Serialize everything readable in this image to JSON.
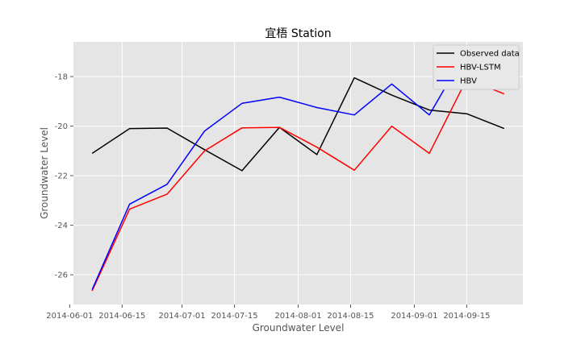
{
  "chart_data": {
    "type": "line",
    "title": "宜梧 Station",
    "xlabel": "Groundwater Level",
    "ylabel": "Groundwater Level",
    "x": [
      "2014-06-07",
      "2014-06-17",
      "2014-06-27",
      "2014-07-07",
      "2014-07-17",
      "2014-07-27",
      "2014-08-06",
      "2014-08-16",
      "2014-08-26",
      "2014-09-05",
      "2014-09-15",
      "2014-09-25"
    ],
    "series": [
      {
        "name": "Observed data",
        "color": "#000000",
        "values": [
          -21.1,
          -20.1,
          -20.08,
          -20.95,
          -21.8,
          -20.05,
          -21.15,
          -18.05,
          -18.75,
          -19.35,
          -19.5,
          -20.1
        ]
      },
      {
        "name": "HBV-LSTM",
        "color": "#ff0000",
        "values": [
          -26.65,
          -23.35,
          -22.75,
          -21.0,
          -20.07,
          -20.05,
          -20.85,
          -21.78,
          -20.0,
          -21.1,
          -18.1,
          -18.7
        ]
      },
      {
        "name": "HBV",
        "color": "#0000ff",
        "values": [
          -26.6,
          -23.15,
          -22.35,
          -20.2,
          -19.08,
          -18.83,
          -19.25,
          -19.55,
          -18.3,
          -19.55,
          -16.95,
          -17.9
        ]
      }
    ],
    "xticks": [
      "2014-06-01",
      "2014-06-15",
      "2014-07-01",
      "2014-07-15",
      "2014-08-01",
      "2014-08-15",
      "2014-09-01",
      "2014-09-15"
    ],
    "yticks": [
      -26,
      -24,
      -22,
      -20,
      -18
    ],
    "xlim": [
      "2014-06-02",
      "2014-09-30"
    ],
    "ylim": [
      -27.2,
      -16.6
    ],
    "grid": true,
    "legend_position": "top-right"
  }
}
